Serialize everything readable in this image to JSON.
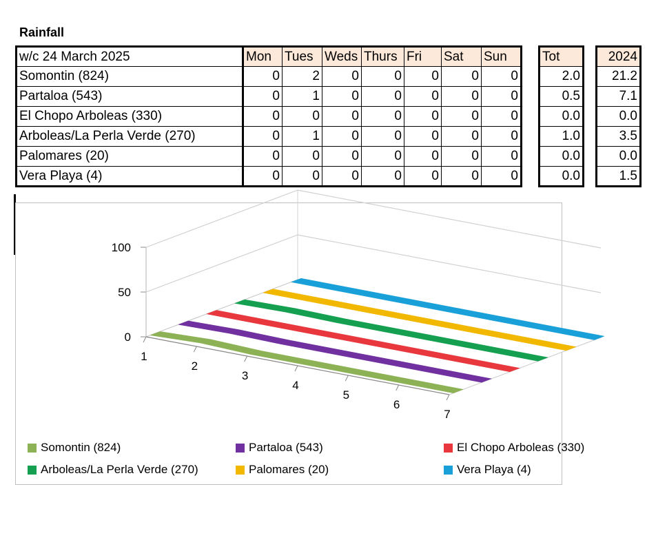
{
  "title": "Rainfall",
  "table": {
    "week_label": "w/c 24 March  2025",
    "days": [
      "Mon",
      "Tues",
      "Weds",
      "Thurs",
      "Fri",
      "Sat",
      "Sun"
    ],
    "tot_header": "Tot",
    "year_header": "2024",
    "rows": [
      {
        "name": "Somontin (824)",
        "values": [
          "0",
          "2",
          "0",
          "0",
          "0",
          "0",
          "0"
        ],
        "tot": "2.0",
        "year": "21.2"
      },
      {
        "name": "Partaloa (543)",
        "values": [
          "0",
          "1",
          "0",
          "0",
          "0",
          "0",
          "0"
        ],
        "tot": "0.5",
        "year": "7.1"
      },
      {
        "name": "El Chopo Arboleas (330)",
        "values": [
          "0",
          "0",
          "0",
          "0",
          "0",
          "0",
          "0"
        ],
        "tot": "0.0",
        "year": "0.0"
      },
      {
        "name": "Arboleas/La Perla Verde (270)",
        "values": [
          "0",
          "1",
          "0",
          "0",
          "0",
          "0",
          "0"
        ],
        "tot": "1.0",
        "year": "3.5"
      },
      {
        "name": "Palomares (20)",
        "values": [
          "0",
          "0",
          "0",
          "0",
          "0",
          "0",
          "0"
        ],
        "tot": "0.0",
        "year": "0.0"
      },
      {
        "name": "Vera Playa (4)",
        "values": [
          "0",
          "0",
          "0",
          "0",
          "0",
          "0",
          "0"
        ],
        "tot": "0.0",
        "year": "1.5"
      }
    ]
  },
  "colors": {
    "header_fill": "#fde9d9",
    "Somontin": "#8db255",
    "Partaloa": "#7030a0",
    "El Chopo": "#e8383d",
    "Arboleas": "#14a050",
    "Palomares": "#f2b800",
    "Vera Playa": "#1aa0d8"
  },
  "chart_data": {
    "type": "line-3d",
    "categories": [
      "1",
      "2",
      "3",
      "4",
      "5",
      "6",
      "7"
    ],
    "y_ticks": [
      "0",
      "50",
      "100"
    ],
    "ylim": [
      0,
      100
    ],
    "legend_position": "bottom",
    "grid": true,
    "series": [
      {
        "name": "Somontin (824)",
        "color": "#8db255",
        "values": [
          0,
          2,
          0,
          0,
          0,
          0,
          0
        ]
      },
      {
        "name": "Partaloa (543)",
        "color": "#7030a0",
        "values": [
          0,
          1,
          0,
          0,
          0,
          0,
          0
        ]
      },
      {
        "name": "El Chopo Arboleas (330)",
        "color": "#e8383d",
        "values": [
          0,
          0,
          0,
          0,
          0,
          0,
          0
        ]
      },
      {
        "name": "Arboleas/La Perla Verde (270)",
        "color": "#14a050",
        "values": [
          0,
          1,
          0,
          0,
          0,
          0,
          0
        ]
      },
      {
        "name": "Palomares (20)",
        "color": "#f2b800",
        "values": [
          0,
          0,
          0,
          0,
          0,
          0,
          0
        ]
      },
      {
        "name": "Vera Playa (4)",
        "color": "#1aa0d8",
        "values": [
          0,
          0,
          0,
          0,
          0,
          0,
          0
        ]
      }
    ]
  }
}
